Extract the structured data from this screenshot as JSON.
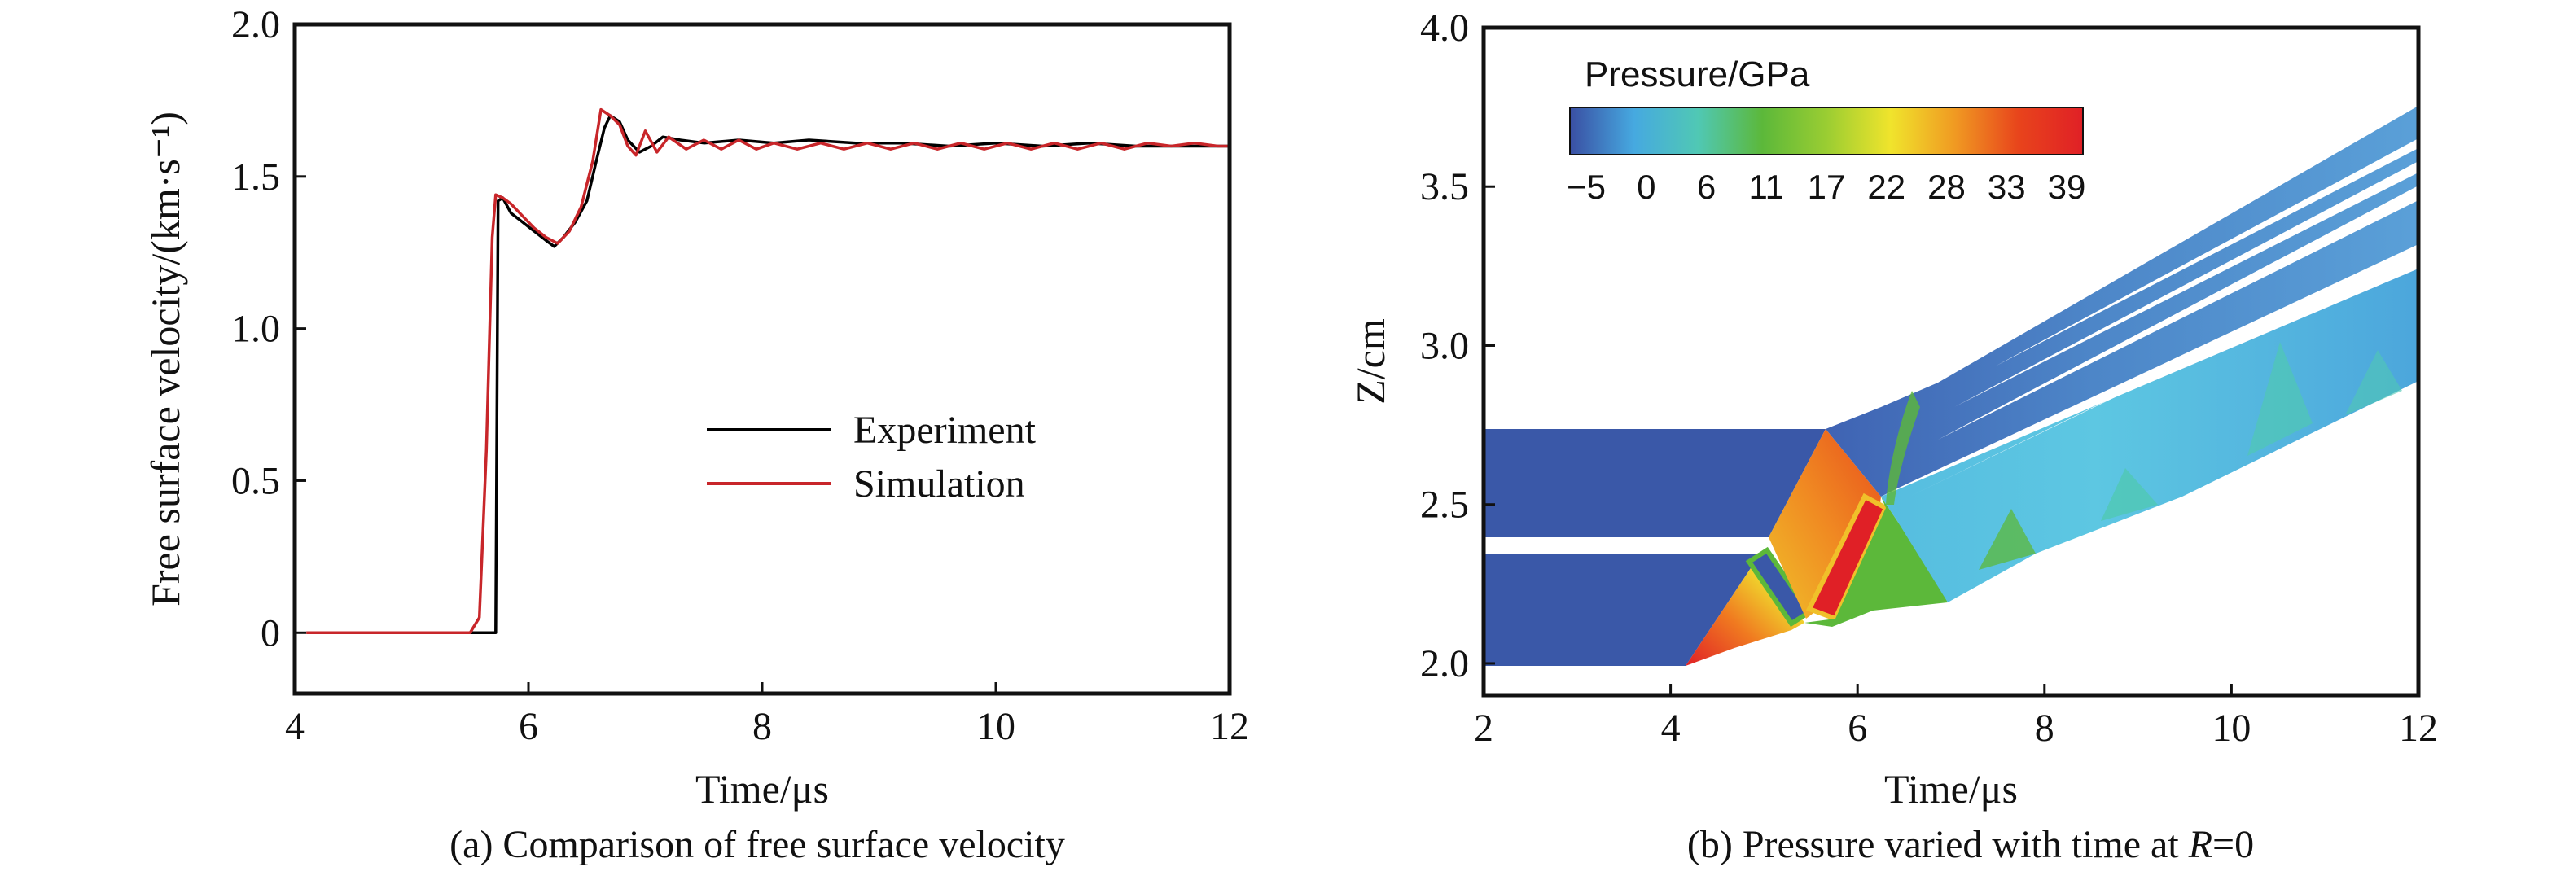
{
  "chart_data": [
    {
      "type": "line",
      "xlabel": "Time/μs",
      "ylabel": "Free surface velocity/(km·s⁻¹)",
      "xlim": [
        4,
        12
      ],
      "ylim": [
        -0.2,
        2.0
      ],
      "xticks": [
        4,
        6,
        8,
        10,
        12
      ],
      "yticks": [
        0,
        0.5,
        1.0,
        1.5,
        2.0
      ],
      "ytick_labels": [
        "0",
        "0.5",
        "1.0",
        "1.5",
        "2.0"
      ],
      "grid": false,
      "legend_position": "center-right",
      "caption": "(a) Comparison of free surface velocity",
      "series": [
        {
          "name": "Experiment",
          "color": "#000000",
          "x": [
            4.1,
            5.5,
            5.72,
            5.74,
            5.78,
            5.85,
            5.95,
            6.05,
            6.15,
            6.22,
            6.3,
            6.4,
            6.5,
            6.58,
            6.65,
            6.7,
            6.78,
            6.85,
            6.95,
            7.05,
            7.15,
            7.3,
            7.5,
            7.8,
            8.1,
            8.4,
            8.8,
            9.2,
            9.6,
            10.0,
            10.4,
            10.8,
            11.2,
            11.6,
            12.0
          ],
          "y": [
            0,
            0,
            0,
            1.42,
            1.43,
            1.38,
            1.35,
            1.32,
            1.29,
            1.27,
            1.3,
            1.35,
            1.42,
            1.55,
            1.66,
            1.7,
            1.68,
            1.62,
            1.58,
            1.6,
            1.63,
            1.62,
            1.61,
            1.62,
            1.61,
            1.62,
            1.61,
            1.61,
            1.6,
            1.61,
            1.6,
            1.61,
            1.6,
            1.6,
            1.6
          ]
        },
        {
          "name": "Simulation",
          "color": "#c8262a",
          "x": [
            4.1,
            5.5,
            5.58,
            5.64,
            5.69,
            5.72,
            5.78,
            5.85,
            5.95,
            6.05,
            6.15,
            6.25,
            6.35,
            6.45,
            6.55,
            6.62,
            6.7,
            6.78,
            6.85,
            6.92,
            7.0,
            7.1,
            7.2,
            7.35,
            7.5,
            7.65,
            7.8,
            7.95,
            8.1,
            8.3,
            8.5,
            8.7,
            8.9,
            9.1,
            9.3,
            9.5,
            9.7,
            9.9,
            10.1,
            10.3,
            10.5,
            10.7,
            10.9,
            11.1,
            11.3,
            11.5,
            11.7,
            11.9,
            12.0
          ],
          "y": [
            0,
            0,
            0.05,
            0.6,
            1.3,
            1.44,
            1.43,
            1.41,
            1.37,
            1.33,
            1.3,
            1.28,
            1.32,
            1.4,
            1.55,
            1.72,
            1.7,
            1.67,
            1.6,
            1.57,
            1.65,
            1.58,
            1.63,
            1.59,
            1.62,
            1.59,
            1.62,
            1.59,
            1.61,
            1.59,
            1.61,
            1.59,
            1.61,
            1.59,
            1.61,
            1.59,
            1.61,
            1.59,
            1.61,
            1.59,
            1.61,
            1.59,
            1.61,
            1.59,
            1.61,
            1.6,
            1.61,
            1.6,
            1.6
          ]
        }
      ]
    },
    {
      "type": "heatmap",
      "xlabel": "Time/μs",
      "ylabel": "Z/cm",
      "xlim": [
        2,
        12
      ],
      "ylim": [
        1.9,
        4.0
      ],
      "xticks": [
        2,
        4,
        6,
        8,
        10,
        12
      ],
      "yticks": [
        2.0,
        2.5,
        3.0,
        3.5,
        4.0
      ],
      "grid": false,
      "legend_position": "top-left",
      "colorbar_label": "Pressure/GPa",
      "colorbar_ticks": [
        "−5",
        "0",
        "6",
        "11",
        "17",
        "22",
        "28",
        "33",
        "39"
      ],
      "colorbar_range": [
        -5,
        39
      ],
      "colormap": [
        "#3a4fa3",
        "#46a9e0",
        "#50c8b4",
        "#5cb83a",
        "#9acd32",
        "#f0e42c",
        "#f09a22",
        "#e8441c",
        "#e02026"
      ],
      "caption": "(b) Pressure varied with time at R=0",
      "caption_parts": [
        "(b) Pressure varied with time at ",
        "R",
        "=0"
      ]
    }
  ]
}
